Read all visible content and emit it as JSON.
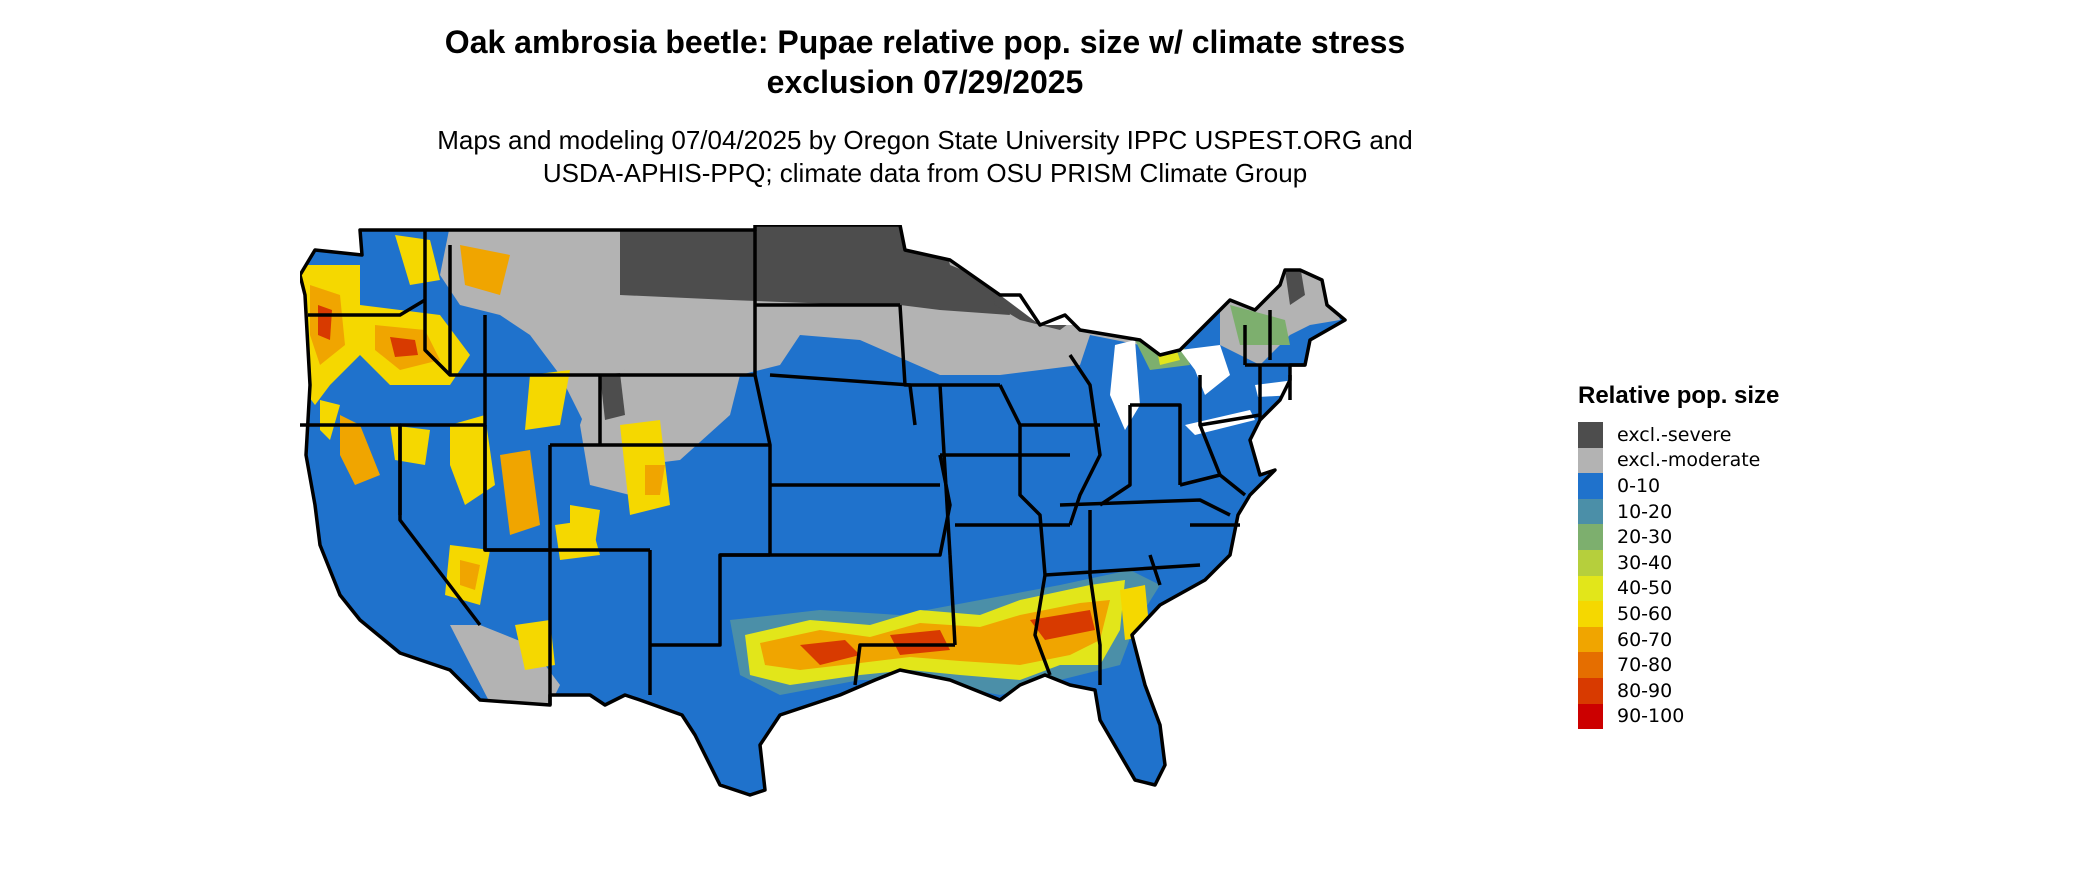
{
  "title": {
    "line1": "Oak ambrosia beetle: Pupae relative pop. size w/ climate stress",
    "line2": "exclusion 07/29/2025"
  },
  "subtitle": {
    "line1": "Maps and modeling 07/04/2025 by Oregon State University IPPC USPEST.ORG and",
    "line2": "USDA-APHIS-PPQ; climate data from OSU PRISM Climate Group"
  },
  "legend": {
    "title": "Relative pop. size",
    "items": [
      {
        "label": "excl.-severe",
        "color": "#4d4d4d"
      },
      {
        "label": "excl.-moderate",
        "color": "#b3b3b3"
      },
      {
        "label": "0-10",
        "color": "#1f72cc"
      },
      {
        "label": "10-20",
        "color": "#4b8fa8"
      },
      {
        "label": "20-30",
        "color": "#7daf6e"
      },
      {
        "label": "30-40",
        "color": "#b6cf3c"
      },
      {
        "label": "40-50",
        "color": "#e2e61a"
      },
      {
        "label": "50-60",
        "color": "#f5d800"
      },
      {
        "label": "60-70",
        "color": "#f0a500"
      },
      {
        "label": "70-80",
        "color": "#e56e00"
      },
      {
        "label": "80-90",
        "color": "#d83a00"
      },
      {
        "label": "90-100",
        "color": "#cc0000"
      }
    ]
  },
  "map": {
    "region": "Contiguous United States",
    "layer": "relative population size",
    "colors": {
      "severe": "#4d4d4d",
      "moderate": "#b3b3b3",
      "base": "#1f72cc",
      "mid": "#4b8fa8",
      "yellow": "#f5d800",
      "orange": "#f0a500",
      "red": "#d83a00",
      "border": "#000000"
    }
  }
}
